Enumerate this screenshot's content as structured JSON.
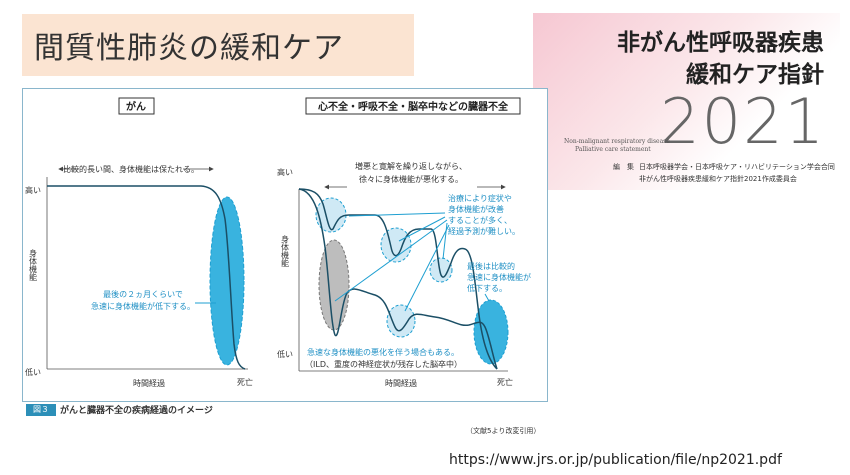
{
  "slide": {
    "title": "間質性肺炎の緩和ケア",
    "url": "https://www.jrs.or.jp/publication/file/np2021.pdf"
  },
  "cover": {
    "title_line1": "非がん性呼吸器疾患",
    "title_line2": "緩和ケア指針",
    "year": "2021",
    "en_line1": "Non-malignant respiratory disease",
    "en_line2": "Palliative care statement",
    "editor_label": "編　集",
    "editor_line1": "日本呼吸器学会・日本呼吸ケア・リハビリテーション学会合同",
    "editor_line2": "非がん性呼吸器疾患緩和ケア指針2021作成委員会"
  },
  "figure": {
    "caption_num": "図３",
    "caption": "がんと臓器不全の疾病経過のイメージ",
    "source": "（文献5より改変引用）",
    "left_panel": {
      "header": "がん",
      "top_note": "比較的長い間、身体機能は保たれる。",
      "y_high": "高い",
      "y_label": "身体機能",
      "y_low": "低い",
      "x_label": "時間経過",
      "x_end": "死亡",
      "note_line1": "最後の２ヵ月くらいで",
      "note_line2": "急速に身体機能が低下する。"
    },
    "right_panel": {
      "header": "心不全・呼吸不全・脳卒中などの臓器不全",
      "top_note_line1": "増悪と寛解を繰り返しながら、",
      "top_note_line2": "徐々に身体機能が悪化する。",
      "y_high": "高い",
      "y_label": "身体機能",
      "y_low": "低い",
      "x_label": "時間経過",
      "x_end": "死亡",
      "recovery_line1": "治療により症状や",
      "recovery_line2": "身体機能が改善",
      "recovery_line3": "することが多く、",
      "recovery_line4": "経過予測が難しい。",
      "final_line1": "最後は比較的",
      "final_line2": "急速に身体機能が",
      "final_line3": "低下する。",
      "sudden_line1": "急速な身体機能の悪化を伴う場合もある。",
      "sudden_line2": "（ILD、重度の神経症状が残存した脳卒中）"
    },
    "colors": {
      "accent": "#1e9fd1",
      "accent_fill": "#39b3df",
      "light_fill": "#cfe9f5",
      "gray_fill": "#bdbdbd",
      "curve": "#1b4f66"
    }
  }
}
